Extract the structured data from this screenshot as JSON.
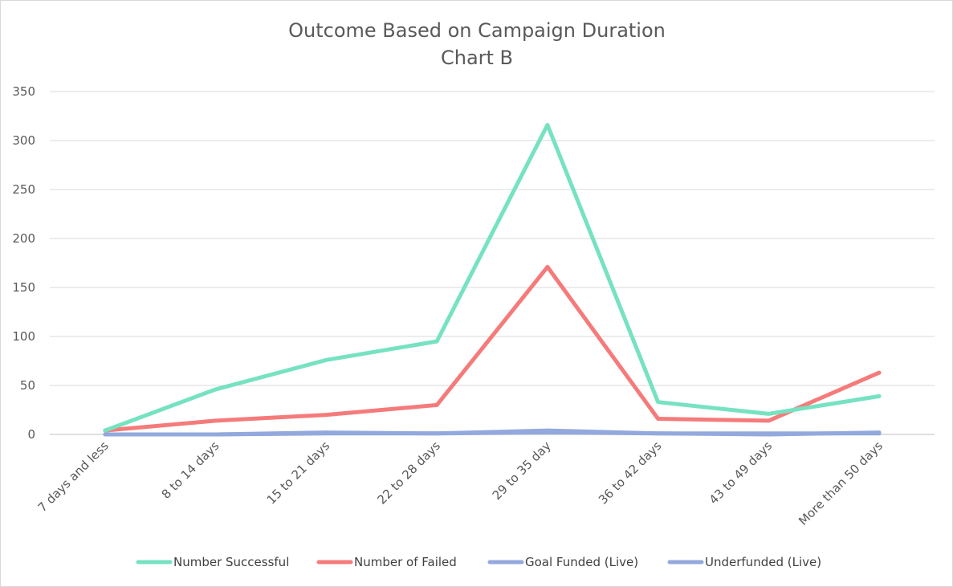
{
  "chart_data": {
    "type": "line",
    "title": "Outcome Based on Campaign Duration",
    "subtitle": "Chart B",
    "xlabel": "",
    "ylabel": "",
    "categories": [
      "7 days and less",
      "8 to 14 days",
      "15 to 21 days",
      "22 to 28 days",
      "29 to 35 day",
      "36 to 42 days",
      "43 to 49 days",
      "More than 50 days"
    ],
    "ylim": [
      0,
      350
    ],
    "yticks": [
      0,
      50,
      100,
      150,
      200,
      250,
      300,
      350
    ],
    "grid": true,
    "legend_position": "bottom",
    "series": [
      {
        "name": "Number Successful",
        "color": "#76e2c1",
        "values": [
          4,
          46,
          76,
          95,
          316,
          33,
          21,
          39
        ]
      },
      {
        "name": "Number of Failed",
        "color": "#f57b7b",
        "values": [
          4,
          14,
          20,
          30,
          171,
          16,
          14,
          63
        ]
      },
      {
        "name": "Goal Funded (Live)",
        "color": "#93a9dd",
        "values": [
          0,
          0,
          2,
          1,
          4,
          1,
          0,
          2
        ]
      },
      {
        "name": "Underfunded (Live)",
        "color": "#93a9dd",
        "values": [
          0,
          0,
          1,
          1,
          2,
          1,
          1,
          1
        ]
      }
    ]
  }
}
